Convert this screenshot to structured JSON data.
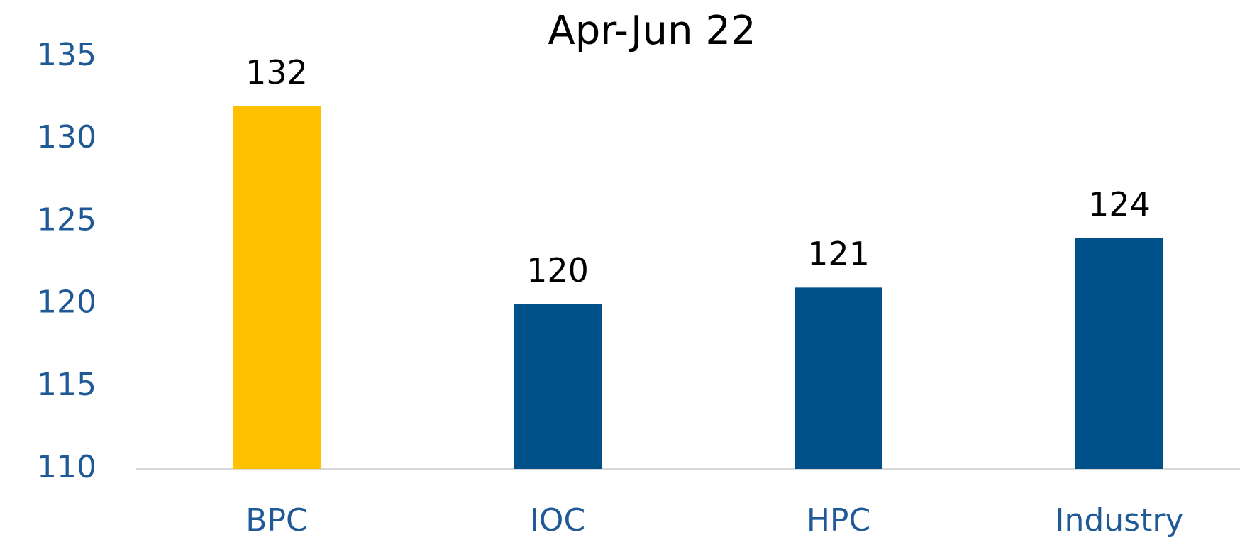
{
  "chart_data": {
    "type": "bar",
    "title": "Apr-Jun 22",
    "categories": [
      "BPC",
      "IOC",
      "HPC",
      "Industry"
    ],
    "values": [
      132,
      120,
      121,
      124
    ],
    "colors": [
      "#ffc000",
      "#00508a",
      "#00508a",
      "#00508a"
    ],
    "ylim": [
      110,
      135
    ],
    "yticks": [
      110,
      115,
      120,
      125,
      130,
      135
    ],
    "grid": false
  }
}
